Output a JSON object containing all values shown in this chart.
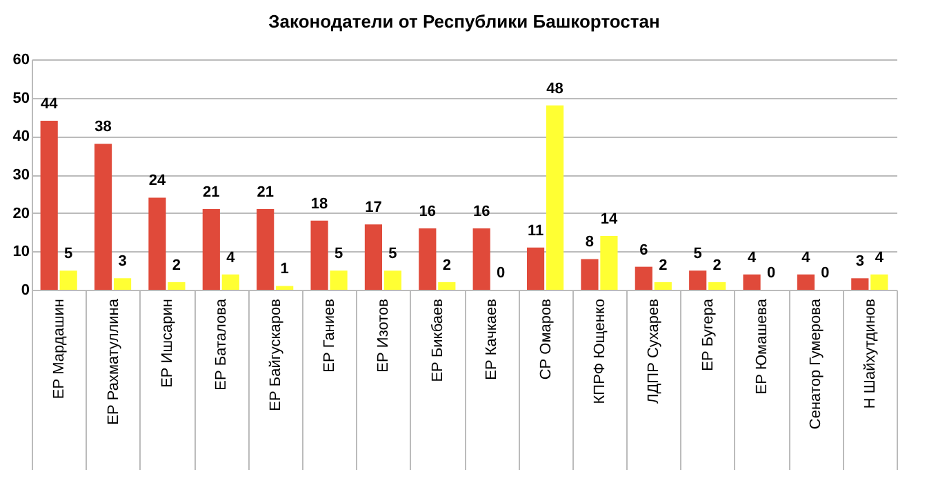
{
  "chart_data": {
    "type": "bar",
    "title": "Законодатели от Республики Башкортостан",
    "categories": [
      "ЕР   Мардашин",
      "ЕР   Рахматуллина",
      "ЕР   Ишсарин",
      "ЕР   Баталова",
      "ЕР   Байгускаров",
      "ЕР   Ганиев",
      "ЕР   Изотов",
      "ЕР   Бикбаев",
      "ЕР   Качкаев",
      "СР   Омаров",
      "КПРФ   Ющенко",
      "ЛДПР   Сухарев",
      "ЕР   Бугера",
      "ЕР   Юмашева",
      "Сенатор   Гумерова",
      "Н   Шайхутдинов"
    ],
    "series": [
      {
        "color": "#e04a3a",
        "values": [
          44,
          38,
          24,
          21,
          21,
          18,
          17,
          16,
          16,
          11,
          8,
          6,
          5,
          4,
          4,
          3
        ]
      },
      {
        "color": "#ffff33",
        "values": [
          5,
          3,
          2,
          4,
          1,
          5,
          5,
          2,
          0,
          48,
          14,
          2,
          2,
          0,
          0,
          4
        ]
      }
    ],
    "ylim": [
      0,
      60
    ],
    "yticks": [
      0,
      10,
      20,
      30,
      40,
      50,
      60
    ],
    "grid": "y",
    "data_labels": true
  }
}
